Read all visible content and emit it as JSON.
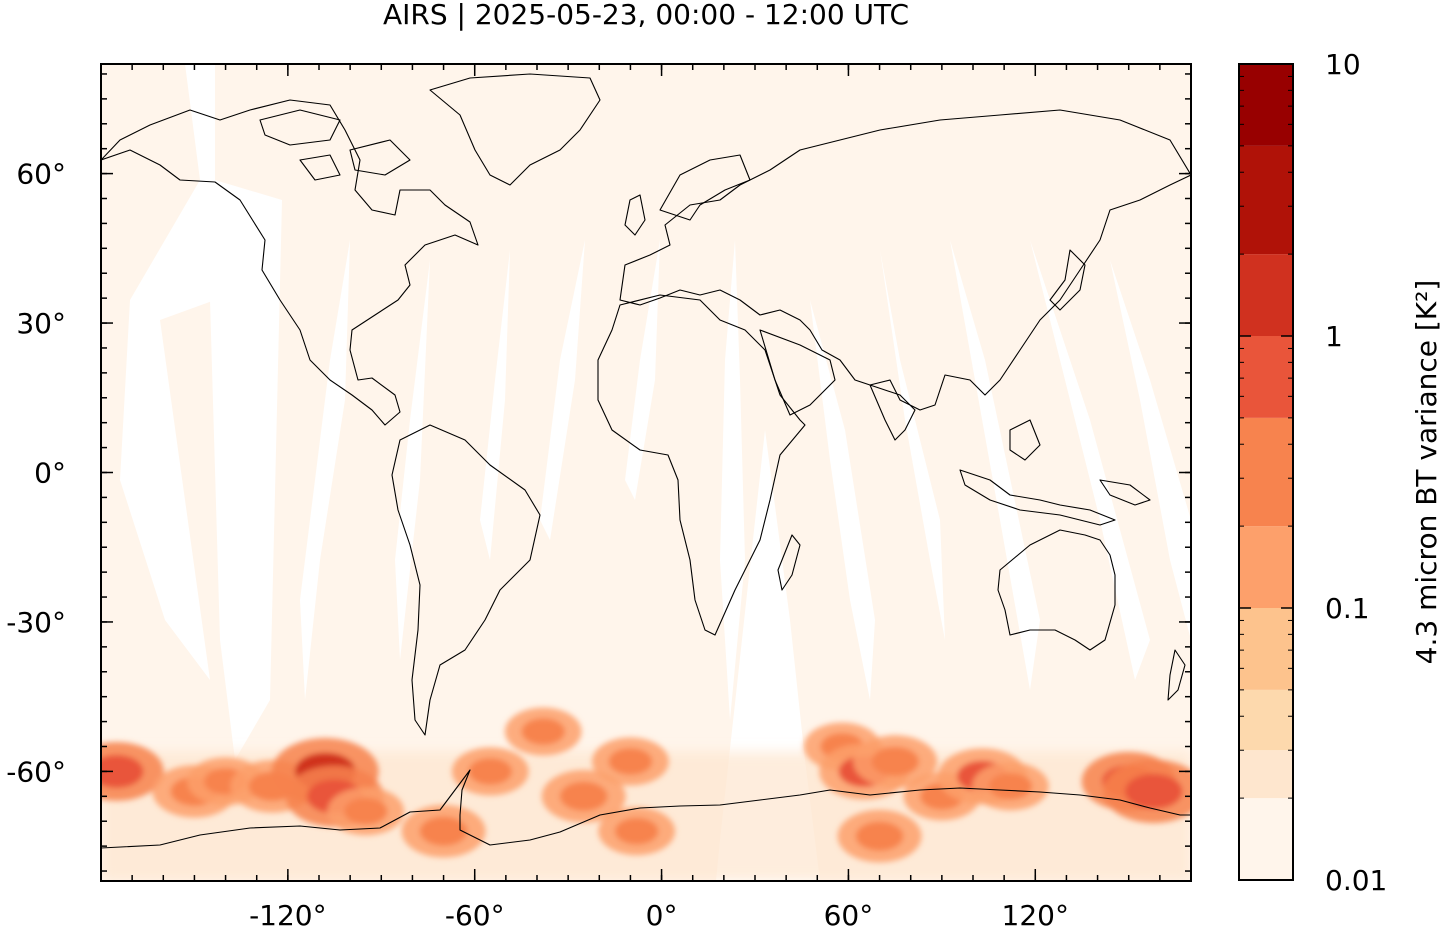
{
  "title": "AIRS | 2025-05-23, 00:00 - 12:00 UTC",
  "map": {
    "projection": "plate-carree",
    "lon_range": [
      -180,
      170
    ],
    "lat_range": [
      -82,
      82
    ],
    "x_ticks": [
      {
        "lon": -120,
        "label": "-120°"
      },
      {
        "lon": -60,
        "label": "-60°"
      },
      {
        "lon": 0,
        "label": "0°"
      },
      {
        "lon": 60,
        "label": "60°"
      },
      {
        "lon": 120,
        "label": "120°"
      }
    ],
    "y_ticks": [
      {
        "lat": 60,
        "label": "60°"
      },
      {
        "lat": 30,
        "label": "30°"
      },
      {
        "lat": 0,
        "label": "0°"
      },
      {
        "lat": -30,
        "label": "-30°"
      },
      {
        "lat": -60,
        "label": "-60°"
      }
    ],
    "background_color": "#fff5eb",
    "swath_gap_color": "#ffffff",
    "coastline_color": "#000000"
  },
  "colorbar": {
    "label": "4.3 micron BT variance [K²]",
    "scale": "log",
    "range": [
      0.01,
      10
    ],
    "tick_labels": [
      {
        "value": 10,
        "label": "10"
      },
      {
        "value": 1,
        "label": "1"
      },
      {
        "value": 0.1,
        "label": "0.1"
      },
      {
        "value": 0.01,
        "label": "0.01"
      }
    ],
    "levels": [
      0.01,
      0.02,
      0.03,
      0.05,
      0.1,
      0.2,
      0.5,
      1,
      2,
      5,
      10
    ],
    "colors": [
      "#fff5eb",
      "#fee6ce",
      "#fdd9ad",
      "#fdc38d",
      "#fda06b",
      "#f7834e",
      "#e9553a",
      "#d0311f",
      "#b01208",
      "#980000"
    ]
  },
  "chart_data": {
    "type": "heatmap",
    "title": "AIRS | 2025-05-23, 00:00 - 12:00 UTC",
    "xlabel": "",
    "ylabel": "",
    "colorbar_label": "4.3 micron BT variance [K²]",
    "xlim": [
      -180,
      170
    ],
    "ylim": [
      -82,
      82
    ],
    "clim": [
      0.01,
      10
    ],
    "color_scale": "log",
    "hotspots": [
      {
        "lon": -175,
        "lat": -60,
        "value": 0.6
      },
      {
        "lon": -150,
        "lat": -64,
        "value": 0.4
      },
      {
        "lon": -140,
        "lat": -62,
        "value": 0.3
      },
      {
        "lon": -125,
        "lat": -63,
        "value": 0.4
      },
      {
        "lon": -108,
        "lat": -60,
        "value": 1.0
      },
      {
        "lon": -105,
        "lat": -65,
        "value": 0.7
      },
      {
        "lon": -95,
        "lat": -68,
        "value": 0.3
      },
      {
        "lon": -70,
        "lat": -72,
        "value": 0.4
      },
      {
        "lon": -55,
        "lat": -60,
        "value": 0.3
      },
      {
        "lon": -38,
        "lat": -52,
        "value": 0.3
      },
      {
        "lon": -25,
        "lat": -65,
        "value": 0.4
      },
      {
        "lon": -10,
        "lat": -58,
        "value": 0.3
      },
      {
        "lon": -8,
        "lat": -72,
        "value": 0.3
      },
      {
        "lon": 58,
        "lat": -55,
        "value": 0.3
      },
      {
        "lon": 65,
        "lat": -60,
        "value": 0.5
      },
      {
        "lon": 75,
        "lat": -58,
        "value": 0.4
      },
      {
        "lon": 70,
        "lat": -73,
        "value": 0.4
      },
      {
        "lon": 90,
        "lat": -65,
        "value": 0.3
      },
      {
        "lon": 103,
        "lat": -61,
        "value": 0.5
      },
      {
        "lon": 112,
        "lat": -63,
        "value": 0.3
      },
      {
        "lon": 150,
        "lat": -62,
        "value": 0.6
      },
      {
        "lon": 158,
        "lat": -64,
        "value": 0.8
      }
    ]
  }
}
